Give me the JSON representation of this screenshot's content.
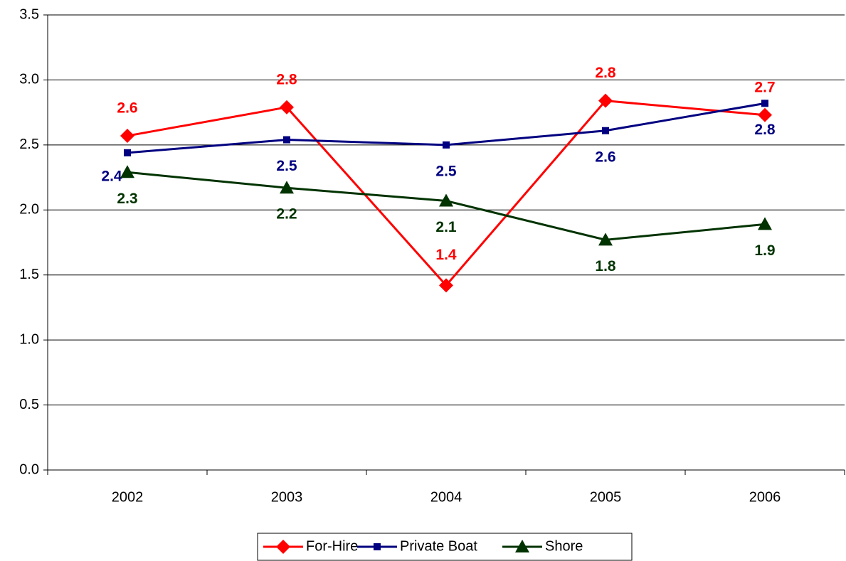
{
  "chart_data": {
    "type": "line",
    "categories": [
      "2002",
      "2003",
      "2004",
      "2005",
      "2006"
    ],
    "series": [
      {
        "name": "For-Hire",
        "color": "#ff0000",
        "marker": "diamond",
        "values": [
          2.57,
          2.79,
          1.42,
          2.84,
          2.73
        ],
        "value_labels": [
          "2.6",
          "2.8",
          "1.4",
          "2.8",
          "2.7"
        ]
      },
      {
        "name": "Private Boat",
        "color": "#000080",
        "marker": "square",
        "values": [
          2.44,
          2.54,
          2.5,
          2.61,
          2.82
        ],
        "value_labels": [
          "2.4",
          "2.5",
          "2.5",
          "2.6",
          "2.8"
        ]
      },
      {
        "name": "Shore",
        "color": "#003300",
        "marker": "triangle",
        "values": [
          2.29,
          2.17,
          2.07,
          1.77,
          1.89
        ],
        "value_labels": [
          "2.3",
          "2.2",
          "2.1",
          "1.8",
          "1.9"
        ]
      }
    ],
    "ylim": [
      0,
      3.5
    ],
    "yticks": [
      {
        "value": 0,
        "label": "0.0"
      },
      0.5,
      {
        "value": 1,
        "label": "1.0"
      },
      1.5,
      {
        "value": 2,
        "label": "2.0"
      },
      2.5,
      {
        "value": 3,
        "label": "3.0"
      },
      3.5
    ],
    "grid": true,
    "legend": "bottom"
  }
}
